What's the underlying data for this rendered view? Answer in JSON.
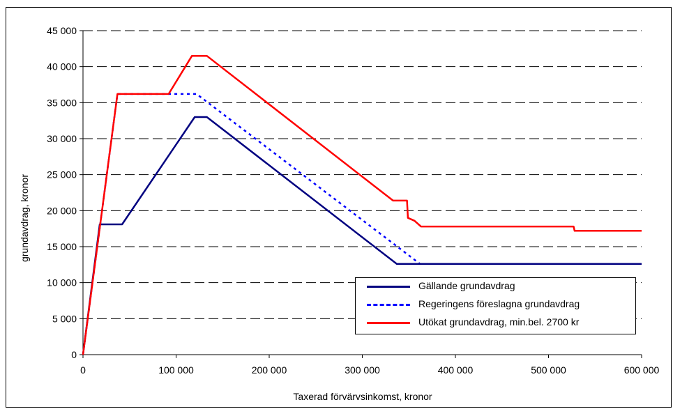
{
  "chart_data": {
    "type": "line",
    "xlabel": "Taxerad förvärvsinkomst, kronor",
    "ylabel": "grundavdrag, kronor",
    "xlim": [
      0,
      600000
    ],
    "ylim": [
      0,
      45000
    ],
    "x_ticks": [
      "0",
      "100 000",
      "200 000",
      "300 000",
      "400 000",
      "500 000",
      "600 000"
    ],
    "y_ticks": [
      "0",
      "5 000",
      "10 000",
      "15 000",
      "20 000",
      "25 000",
      "30 000",
      "35 000",
      "40 000",
      "45 000"
    ],
    "grid": "horizontal dashed",
    "legend_position": "lower-right",
    "series": [
      {
        "name": "Gällande grundavdrag",
        "color": "#000080",
        "style": "solid",
        "points": [
          [
            0,
            0
          ],
          [
            18000,
            18100
          ],
          [
            42000,
            18100
          ],
          [
            120000,
            33000
          ],
          [
            133000,
            33000
          ],
          [
            337000,
            12600
          ],
          [
            600000,
            12600
          ]
        ]
      },
      {
        "name": "Regeringens föreslagna grundavdrag",
        "color": "#0000FF",
        "style": "dotted",
        "points": [
          [
            0,
            0
          ],
          [
            37000,
            36200
          ],
          [
            122000,
            36200
          ],
          [
            362000,
            12600
          ],
          [
            600000,
            12600
          ]
        ]
      },
      {
        "name": "Utökat grundavdrag, min.bel. 2700 kr",
        "color": "#FF0000",
        "style": "solid",
        "points": [
          [
            0,
            0
          ],
          [
            37000,
            36200
          ],
          [
            92000,
            36200
          ],
          [
            117000,
            41500
          ],
          [
            133000,
            41500
          ],
          [
            333000,
            21400
          ],
          [
            348000,
            21400
          ],
          [
            349000,
            19000
          ],
          [
            356000,
            18600
          ],
          [
            363000,
            17800
          ],
          [
            527000,
            17800
          ],
          [
            528000,
            17200
          ],
          [
            600000,
            17200
          ]
        ]
      }
    ]
  }
}
